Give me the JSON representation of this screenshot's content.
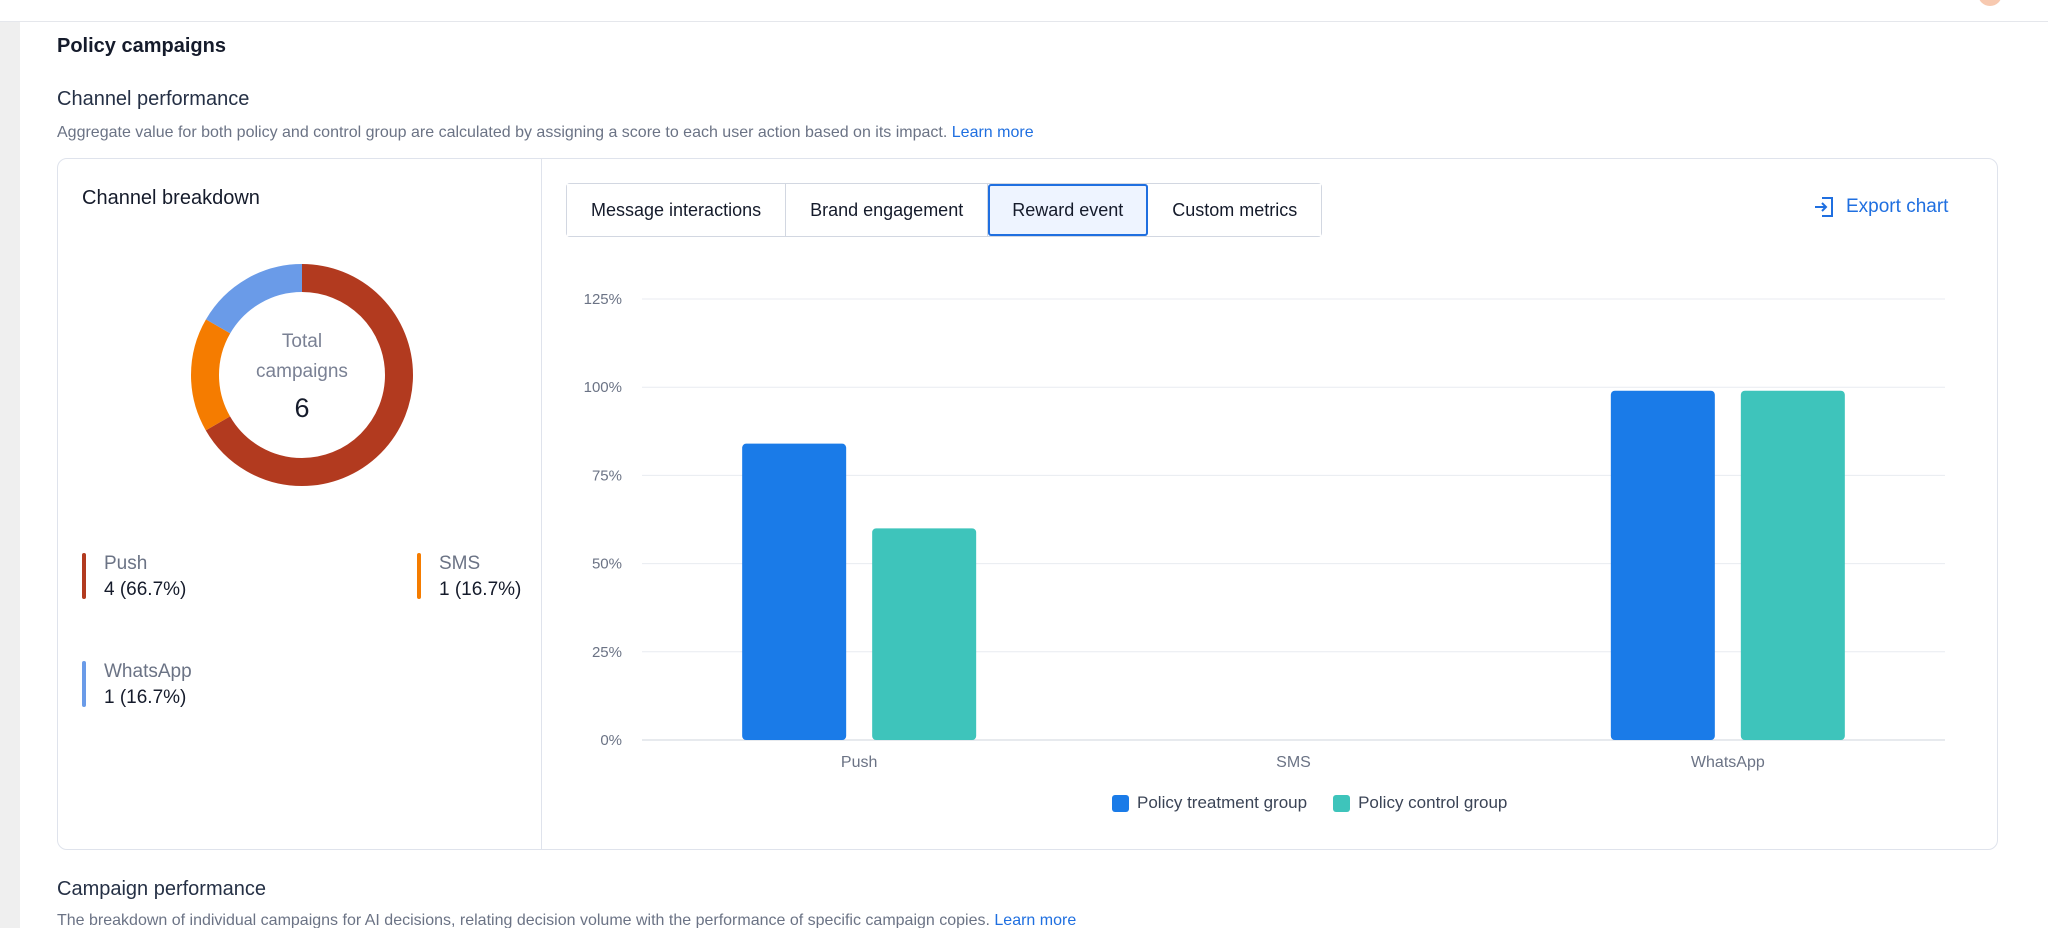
{
  "header": {
    "section_title": "Policy campaigns"
  },
  "channel_performance": {
    "title": "Channel performance",
    "description": "Aggregate value for both policy and control group are calculated by assigning a score to each user action based on its impact.",
    "learn_more": "Learn more"
  },
  "breakdown": {
    "title": "Channel breakdown",
    "center_label": "Total campaigns",
    "center_value": "6",
    "items": [
      {
        "name": "Push",
        "value": "4 (66.7%)",
        "count": 4,
        "color": "#b23a1f"
      },
      {
        "name": "SMS",
        "value": "1 (16.7%)",
        "count": 1,
        "color": "#f57c00"
      },
      {
        "name": "WhatsApp",
        "value": "1 (16.7%)",
        "count": 1,
        "color": "#6a9be8"
      }
    ]
  },
  "tabs": [
    {
      "label": "Message interactions",
      "active": false
    },
    {
      "label": "Brand engagement",
      "active": false
    },
    {
      "label": "Reward event",
      "active": true
    },
    {
      "label": "Custom metrics",
      "active": false
    }
  ],
  "export_label": "Export chart",
  "chart_data": {
    "type": "bar",
    "categories": [
      "Push",
      "SMS",
      "WhatsApp"
    ],
    "series": [
      {
        "name": "Policy treatment group",
        "values": [
          84,
          0,
          99
        ],
        "color": "#1a7be8"
      },
      {
        "name": "Policy control group",
        "values": [
          60,
          0,
          99
        ],
        "color": "#3ec4bb"
      }
    ],
    "y_ticks": [
      "0%",
      "25%",
      "50%",
      "75%",
      "100%",
      "125%"
    ],
    "ylim": [
      0,
      125
    ],
    "grid": true,
    "legend": "bottom-center"
  },
  "campaign_performance": {
    "title": "Campaign performance",
    "description": "The breakdown of individual campaigns for AI decisions, relating decision volume with the performance of specific campaign copies.",
    "learn_more": "Learn more"
  }
}
